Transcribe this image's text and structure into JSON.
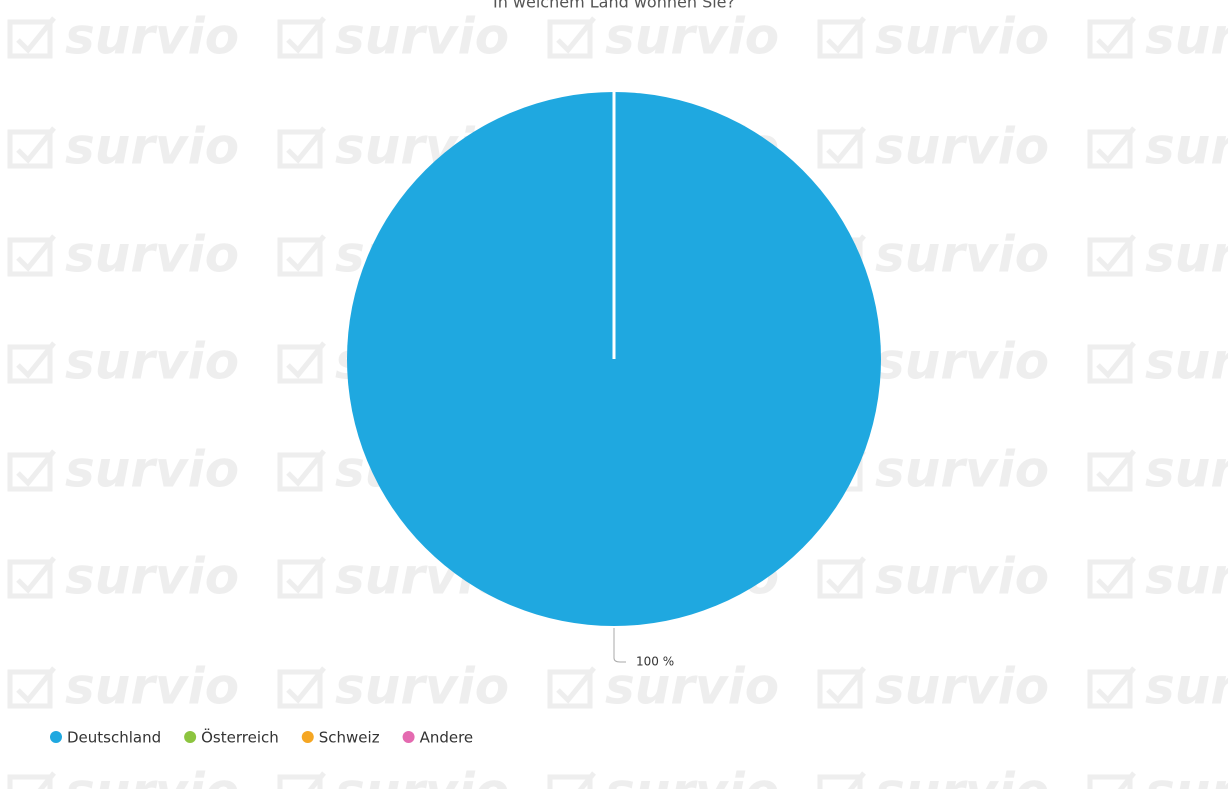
{
  "chart_data": {
    "type": "pie",
    "title": "In welchem Land wohnen Sie?",
    "watermark": "survio",
    "categories": [
      "Deutschland",
      "Österreich",
      "Schweiz",
      "Andere"
    ],
    "values": [
      100,
      0,
      0,
      0
    ],
    "value_labels": [
      "100 %",
      null,
      null,
      null
    ],
    "colors": [
      "#1fa8e0",
      "#8cc43f",
      "#f5a623",
      "#e46ab0"
    ],
    "legend": "bottom-left"
  }
}
